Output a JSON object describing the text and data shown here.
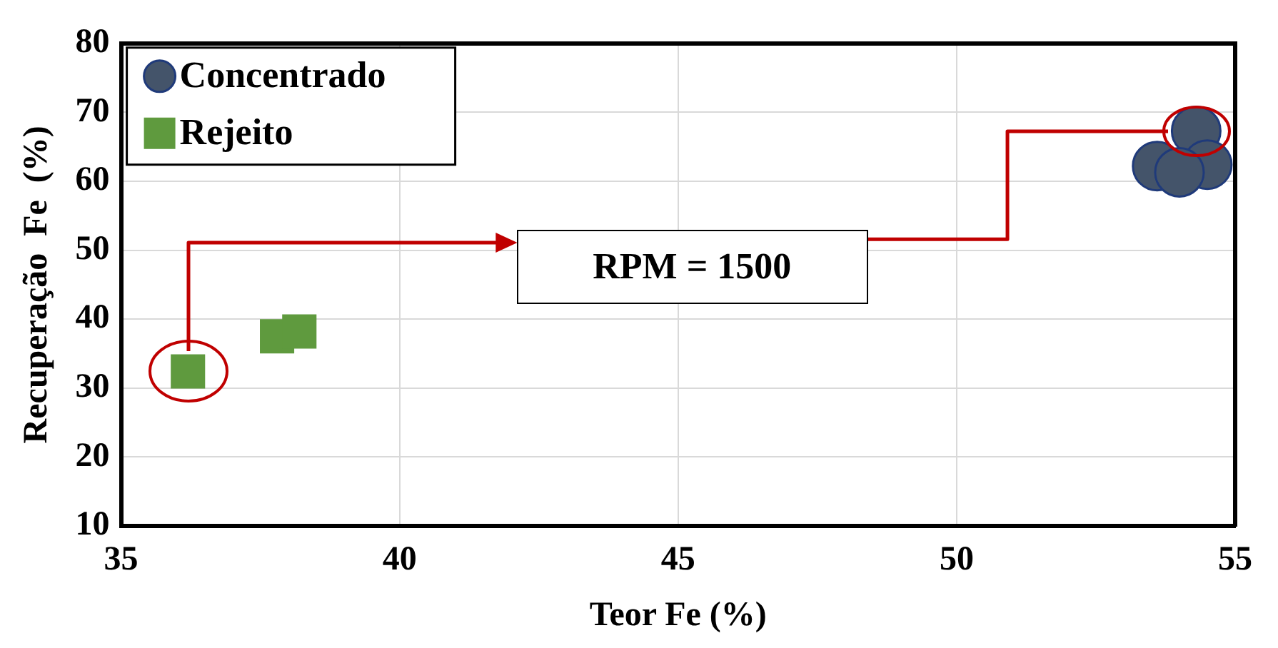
{
  "chart_data": {
    "type": "scatter",
    "xlabel": "Teor Fe (%)",
    "ylabel": "Recuperação  Fe  (%)",
    "xlim": [
      35,
      55
    ],
    "xticks": [
      35,
      40,
      45,
      50,
      55
    ],
    "ylim": [
      10,
      80
    ],
    "yticks": [
      10,
      20,
      30,
      40,
      50,
      60,
      70,
      80
    ],
    "grid": true,
    "legend": "top left",
    "annotations": [
      "RPM = 1500"
    ],
    "series": [
      {
        "name": "Concentrado",
        "color": "#44546a",
        "marker": "circle",
        "x": [
          54.3,
          53.6,
          54.5,
          54.0
        ],
        "values": [
          67.3,
          62.2,
          62.4,
          61.3
        ]
      },
      {
        "name": "Rejeito",
        "color": "#5f9a3e",
        "marker": "square",
        "x": [
          36.2,
          37.8,
          38.2
        ],
        "values": [
          32.4,
          37.5,
          38.2
        ]
      }
    ]
  }
}
